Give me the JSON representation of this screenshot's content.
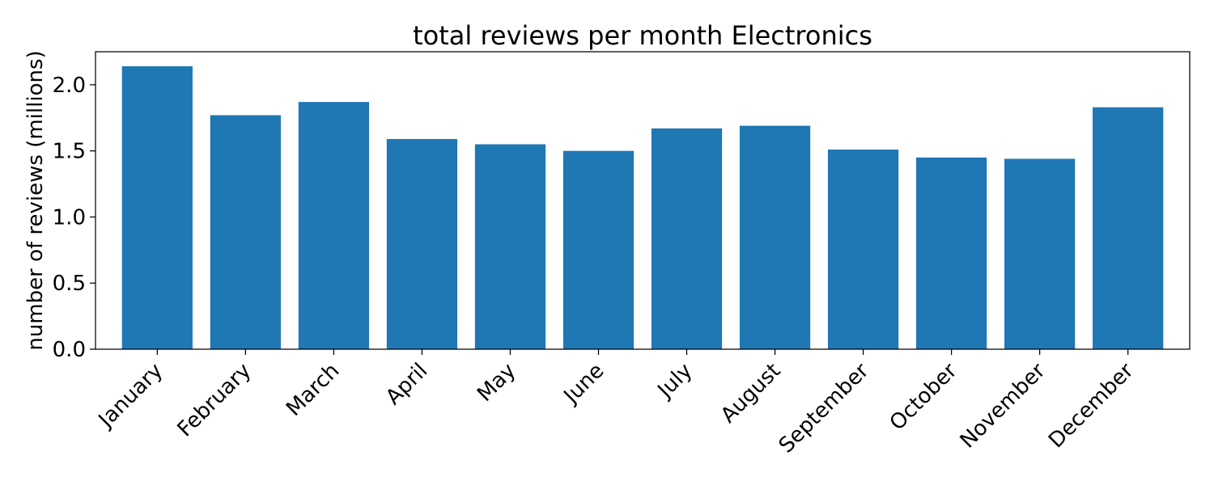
{
  "chart_data": {
    "type": "bar",
    "title": "total reviews per month Electronics",
    "xlabel": "",
    "ylabel": "number of reviews (millions)",
    "categories": [
      "January",
      "February",
      "March",
      "April",
      "May",
      "June",
      "July",
      "August",
      "September",
      "October",
      "November",
      "December"
    ],
    "values": [
      2.14,
      1.77,
      1.87,
      1.59,
      1.55,
      1.5,
      1.67,
      1.69,
      1.51,
      1.45,
      1.44,
      1.83
    ],
    "ylim": [
      0,
      2.25
    ],
    "yticks": [
      0.0,
      0.5,
      1.0,
      1.5,
      2.0
    ],
    "ytick_labels": [
      "0.0",
      "0.5",
      "1.0",
      "1.5",
      "2.0"
    ],
    "bar_color": "#1f77b4",
    "grid": false,
    "legend": "none"
  }
}
